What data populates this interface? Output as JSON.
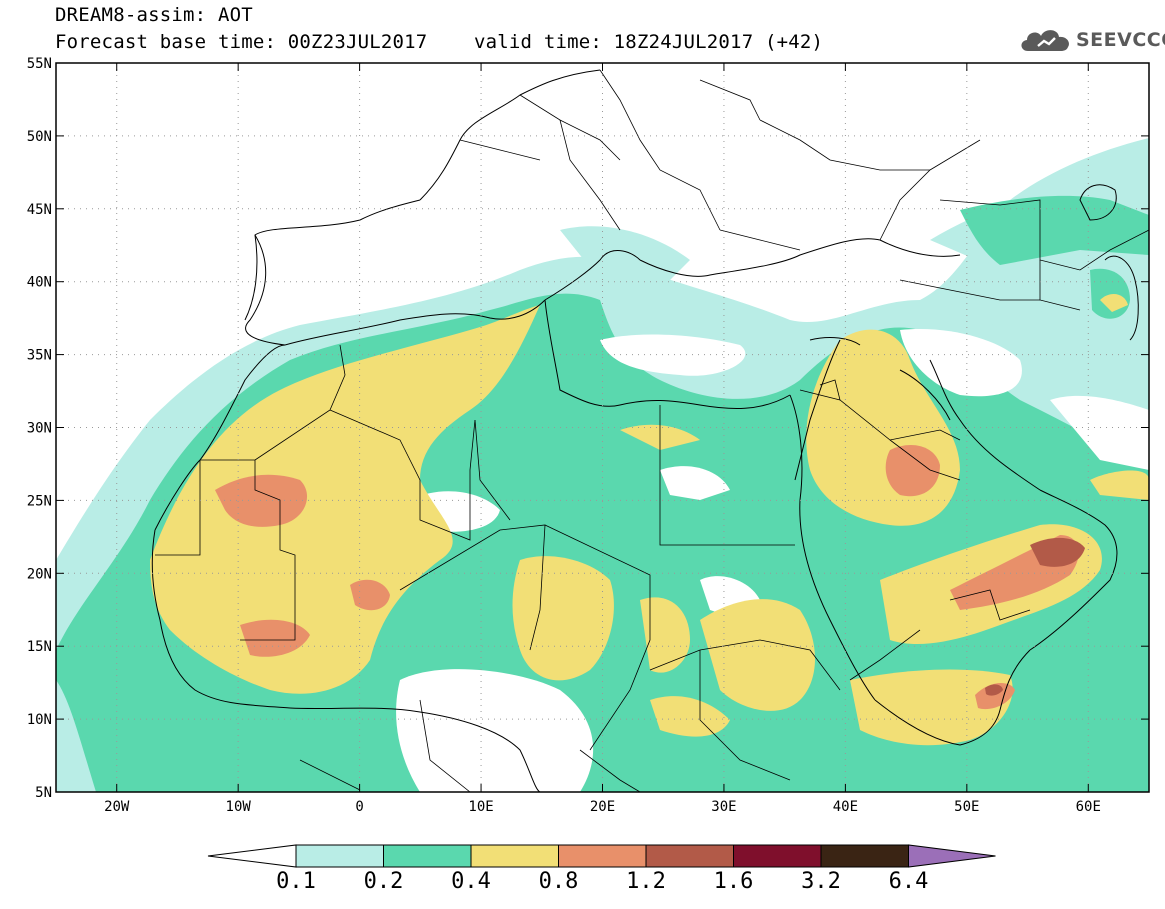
{
  "header": {
    "line1": "DREAM8-assim: AOT",
    "line2": "Forecast base time: 00Z23JUL2017    valid time: 18Z24JUL2017 (+42)"
  },
  "logo": {
    "icon": "cloud-icon",
    "text": "SEEVCCC",
    "color": "#5a5a5a"
  },
  "map": {
    "lon_range": [
      -25,
      65
    ],
    "lat_range": [
      5,
      55
    ],
    "lat_ticks": [
      "55N",
      "50N",
      "45N",
      "40N",
      "35N",
      "30N",
      "25N",
      "20N",
      "15N",
      "10N",
      "5N"
    ],
    "lon_ticks": [
      "20W",
      "10W",
      "0",
      "10E",
      "20E",
      "30E",
      "40E",
      "50E",
      "60E"
    ]
  },
  "colorbar": {
    "levels": [
      "0.1",
      "0.2",
      "0.4",
      "0.8",
      "1.2",
      "1.6",
      "3.2",
      "6.4"
    ],
    "colors": [
      "#b9ede6",
      "#5ad8ae",
      "#f2df76",
      "#e8906a",
      "#b25a48",
      "#7f0f2c",
      "#3a2414",
      "#9b6fb8"
    ],
    "under_color": "#ffffff"
  }
}
